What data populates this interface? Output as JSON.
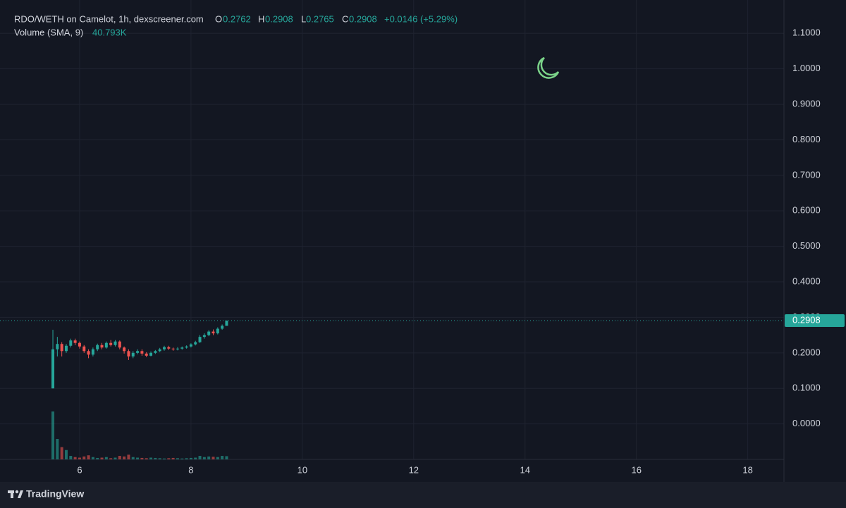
{
  "chart_data": {
    "type": "candlestick",
    "title": "RDO/WETH on Camelot, 1h, dexscreener.com",
    "ohlc_labels": {
      "open": "O",
      "high": "H",
      "low": "L",
      "close": "C"
    },
    "last": {
      "open": "0.2762",
      "high": "0.2908",
      "low": "0.2765",
      "close": "0.2908",
      "change": "+0.0146 (+5.29%)"
    },
    "volume_label": "Volume (SMA, 9)",
    "volume_sma": "40.793K",
    "brand": "TradingView",
    "up_color": "#26a69a",
    "down_color": "#ef5350",
    "x": [
      5.52,
      5.6,
      5.68,
      5.76,
      5.84,
      5.92,
      6.0,
      6.08,
      6.16,
      6.24,
      6.32,
      6.4,
      6.48,
      6.56,
      6.64,
      6.72,
      6.8,
      6.88,
      6.96,
      7.04,
      7.12,
      7.2,
      7.28,
      7.36,
      7.44,
      7.52,
      7.6,
      7.68,
      7.76,
      7.84,
      7.92,
      8.0,
      8.08,
      8.16,
      8.24,
      8.32,
      8.4,
      8.48,
      8.56,
      8.64
    ],
    "open": [
      0.1,
      0.21,
      0.225,
      0.205,
      0.22,
      0.235,
      0.228,
      0.218,
      0.205,
      0.195,
      0.21,
      0.222,
      0.215,
      0.228,
      0.222,
      0.232,
      0.215,
      0.205,
      0.19,
      0.2,
      0.205,
      0.198,
      0.192,
      0.2,
      0.205,
      0.21,
      0.216,
      0.212,
      0.21,
      0.212,
      0.215,
      0.218,
      0.224,
      0.23,
      0.245,
      0.25,
      0.26,
      0.255,
      0.268,
      0.2762
    ],
    "high": [
      0.265,
      0.245,
      0.23,
      0.225,
      0.24,
      0.24,
      0.232,
      0.222,
      0.21,
      0.215,
      0.226,
      0.228,
      0.232,
      0.236,
      0.236,
      0.235,
      0.218,
      0.21,
      0.205,
      0.21,
      0.21,
      0.202,
      0.204,
      0.208,
      0.214,
      0.22,
      0.22,
      0.215,
      0.216,
      0.218,
      0.221,
      0.227,
      0.234,
      0.25,
      0.255,
      0.264,
      0.266,
      0.272,
      0.28,
      0.2908
    ],
    "low": [
      0.1,
      0.19,
      0.19,
      0.2,
      0.215,
      0.222,
      0.212,
      0.2,
      0.185,
      0.19,
      0.205,
      0.21,
      0.212,
      0.218,
      0.218,
      0.21,
      0.198,
      0.18,
      0.185,
      0.196,
      0.192,
      0.188,
      0.19,
      0.197,
      0.202,
      0.206,
      0.208,
      0.206,
      0.207,
      0.209,
      0.212,
      0.215,
      0.221,
      0.228,
      0.24,
      0.247,
      0.25,
      0.252,
      0.265,
      0.2765
    ],
    "close": [
      0.21,
      0.225,
      0.205,
      0.22,
      0.235,
      0.228,
      0.218,
      0.205,
      0.195,
      0.21,
      0.222,
      0.215,
      0.228,
      0.222,
      0.232,
      0.215,
      0.205,
      0.19,
      0.2,
      0.205,
      0.198,
      0.192,
      0.2,
      0.205,
      0.21,
      0.216,
      0.212,
      0.21,
      0.212,
      0.215,
      0.218,
      0.224,
      0.23,
      0.245,
      0.25,
      0.26,
      0.255,
      0.268,
      0.2762,
      0.2908
    ],
    "close_label": "0.2908",
    "volume": [
      820,
      350,
      210,
      160,
      60,
      40,
      30,
      50,
      70,
      40,
      25,
      30,
      40,
      20,
      30,
      60,
      50,
      80,
      40,
      30,
      25,
      20,
      30,
      25,
      20,
      15,
      20,
      25,
      20,
      15,
      20,
      25,
      30,
      60,
      40,
      50,
      45,
      40,
      60,
      55
    ],
    "xlim": [
      4.57,
      18.65
    ],
    "xticks": [
      6,
      8,
      10,
      12,
      14,
      16,
      18
    ],
    "ylim": [
      -0.1,
      1.17
    ],
    "yticks": [
      {
        "value": 0,
        "label": "0.0000"
      },
      {
        "value": 0.1,
        "label": "0.1000"
      },
      {
        "value": 0.2,
        "label": "0.2000"
      },
      {
        "value": 0.3,
        "label": "0.3000"
      },
      {
        "value": 0.4,
        "label": "0.4000"
      },
      {
        "value": 0.5,
        "label": "0.5000"
      },
      {
        "value": 0.6,
        "label": "0.6000"
      },
      {
        "value": 0.7,
        "label": "0.7000"
      },
      {
        "value": 0.8,
        "label": "0.8000"
      },
      {
        "value": 0.9,
        "label": "0.9000"
      },
      {
        "value": 1,
        "label": "1.0000"
      },
      {
        "value": 1.1,
        "label": "1.1000"
      }
    ],
    "grid": true
  }
}
